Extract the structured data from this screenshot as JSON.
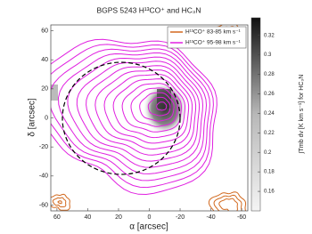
{
  "chart_data": {
    "type": "contour",
    "title": "BGPS 5243 H¹³CO⁺ and HC₃N",
    "x_label": "α [arcsec]",
    "y_label": "δ [arcsec]",
    "xlim": [
      64,
      -64
    ],
    "xticks": [
      60,
      40,
      20,
      0,
      -20,
      -40,
      -60
    ],
    "ylim": [
      -64,
      64
    ],
    "yticks": [
      -60,
      -40,
      -20,
      0,
      20,
      40,
      60
    ],
    "colorbar_label": "∫Tmb dv [K km s⁻¹] for HC₃N",
    "clim": [
      0.14,
      0.338
    ],
    "cticks": [
      0.16,
      0.18,
      0.2,
      0.22,
      0.24,
      0.26,
      0.28,
      0.3,
      0.32
    ],
    "legend": "upper right",
    "series": [
      {
        "name": "H¹³CO⁺ 83-85 km s⁻¹",
        "color": "#d2691e"
      },
      {
        "name": "H¹³CO⁺ 95-98 km s⁻¹",
        "color": "#e020e0"
      }
    ]
  }
}
